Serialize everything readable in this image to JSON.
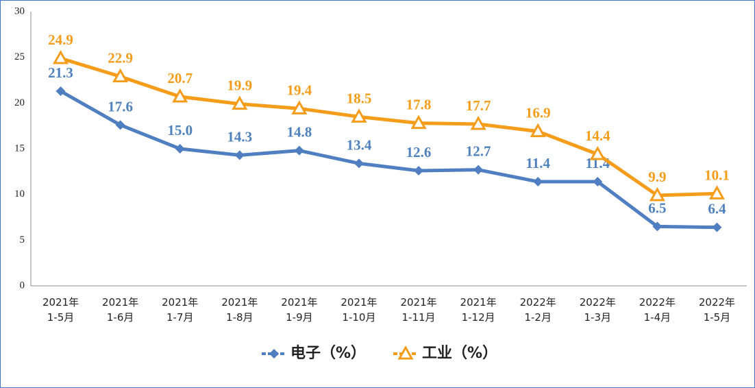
{
  "chart_data": {
    "type": "line",
    "categories": [
      "2021年\n1-5月",
      "2021年\n1-6月",
      "2021年\n1-7月",
      "2021年\n1-8月",
      "2021年\n1-9月",
      "2021年\n1-10月",
      "2021年\n1-11月",
      "2021年\n1-12月",
      "2022年\n1-2月",
      "2022年\n1-3月",
      "2022年\n1-4月",
      "2022年\n1-5月"
    ],
    "series": [
      {
        "name": "电子（%）",
        "color": "#4f7fc1",
        "label_color": "#4f81bd",
        "marker": "diamond",
        "values": [
          21.3,
          17.6,
          15.0,
          14.3,
          14.8,
          13.4,
          12.6,
          12.7,
          11.4,
          11.4,
          6.5,
          6.4
        ],
        "value_labels": [
          "21.3",
          "17.6",
          "15.0",
          "14.3",
          "14.8",
          "13.4",
          "12.6",
          "12.7",
          "11.4",
          "11.4",
          "6.5",
          "6.4"
        ]
      },
      {
        "name": "工业（%）",
        "color": "#f59c1a",
        "label_color": "#f59c1a",
        "marker": "triangle",
        "values": [
          24.9,
          22.9,
          20.7,
          19.9,
          19.4,
          18.5,
          17.8,
          17.7,
          16.9,
          14.4,
          9.9,
          10.1
        ],
        "value_labels": [
          "24.9",
          "22.9",
          "20.7",
          "19.9",
          "19.4",
          "18.5",
          "17.8",
          "17.7",
          "16.9",
          "14.4",
          "9.9",
          "10.1"
        ]
      }
    ],
    "ylim": [
      0,
      30
    ],
    "yticks": [
      0,
      5,
      10,
      15,
      20,
      25,
      30
    ],
    "grid": false,
    "legend": "bottom"
  }
}
